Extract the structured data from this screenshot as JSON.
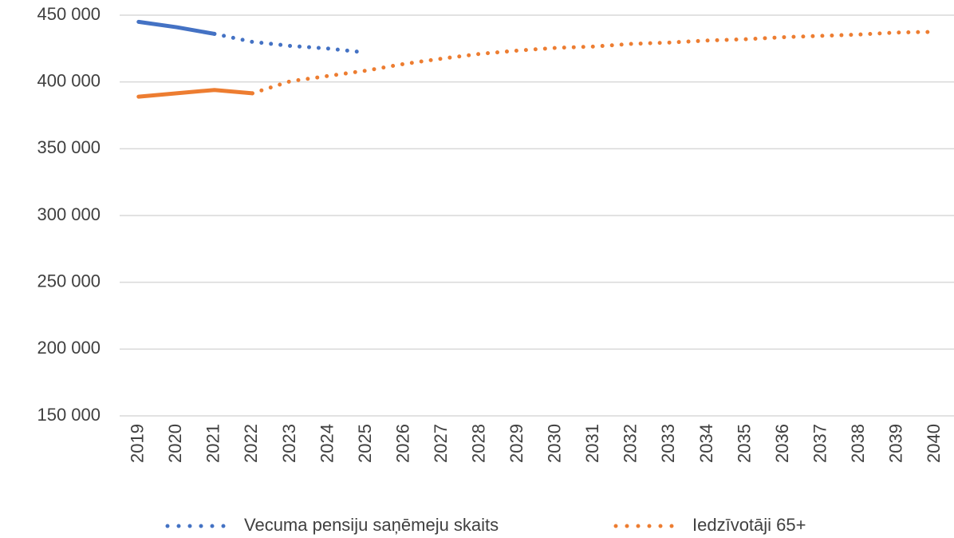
{
  "chart_data": {
    "type": "line",
    "categories": [
      "2019",
      "2020",
      "2021",
      "2022",
      "2023",
      "2024",
      "2025",
      "2026",
      "2027",
      "2028",
      "2029",
      "2030",
      "2031",
      "2032",
      "2033",
      "2034",
      "2035",
      "2036",
      "2037",
      "2038",
      "2039",
      "2040"
    ],
    "series": [
      {
        "name": "Vecuma pensiju saņēmeju skaits",
        "color": "#4472c4",
        "solid_until": "2021",
        "values": [
          445000,
          441000,
          436000,
          430000,
          427000,
          425000,
          422000,
          null,
          null,
          null,
          null,
          null,
          null,
          null,
          null,
          null,
          null,
          null,
          null,
          null,
          null,
          null
        ]
      },
      {
        "name": "Iedzīvotāji 65+",
        "color": "#ed7d31",
        "solid_until": "2022",
        "values": [
          389000,
          391500,
          394000,
          391500,
          400500,
          404500,
          408500,
          413500,
          417500,
          421000,
          423500,
          425500,
          426500,
          428500,
          429500,
          431000,
          432000,
          433500,
          434500,
          435500,
          437000,
          437500
        ]
      }
    ],
    "ylim": [
      150000,
      450000
    ],
    "yticks": [
      {
        "value": 150000,
        "label": "150 000"
      },
      {
        "value": 200000,
        "label": "200 000"
      },
      {
        "value": 250000,
        "label": "250 000"
      },
      {
        "value": 300000,
        "label": "300 000"
      },
      {
        "value": 350000,
        "label": "350 000"
      },
      {
        "value": 400000,
        "label": "400 000"
      },
      {
        "value": 450000,
        "label": "450 000"
      }
    ],
    "grid": true,
    "legend": "bottom"
  }
}
